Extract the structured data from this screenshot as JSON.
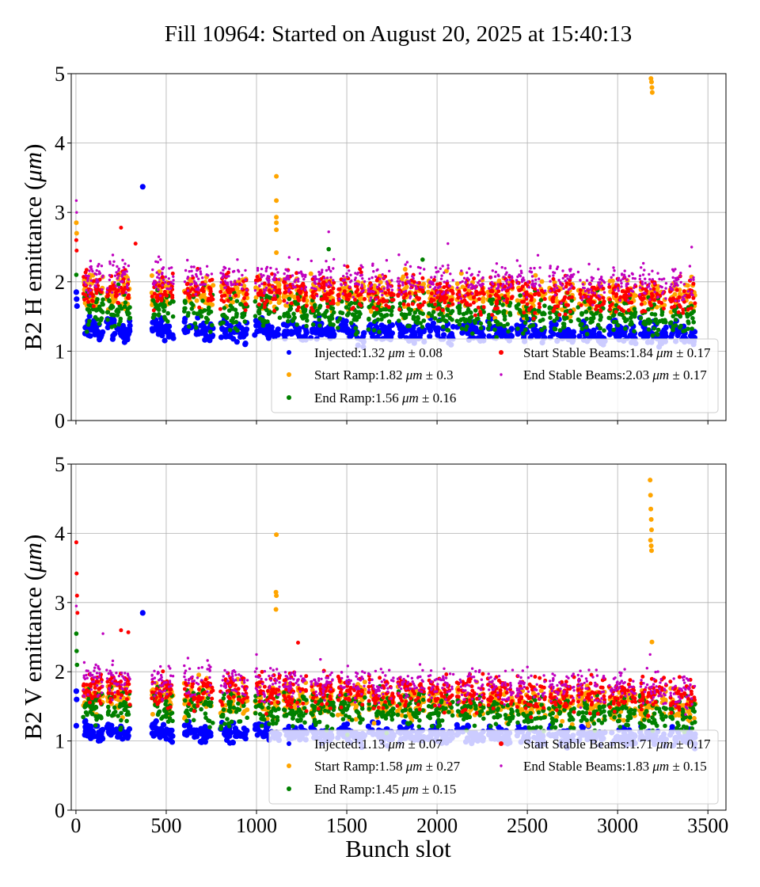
{
  "chart_data": {
    "type": "scatter",
    "title": "Fill 10964: Started on August 20, 2025 at 15:40:13",
    "xlabel": "Bunch slot",
    "xlim": [
      -26,
      3600
    ],
    "xticks": [
      "0",
      "500",
      "1000",
      "1500",
      "2000",
      "2500",
      "3000",
      "3500"
    ],
    "xtick_values": [
      0,
      500,
      1000,
      1500,
      2000,
      2500,
      3000,
      3500
    ],
    "grid": true,
    "legend_placement": "lower-right",
    "trains": [
      [
        40,
        150
      ],
      [
        170,
        300
      ],
      [
        420,
        540
      ],
      [
        600,
        760
      ],
      [
        800,
        950
      ],
      [
        990,
        1130
      ],
      [
        1150,
        1280
      ],
      [
        1300,
        1430
      ],
      [
        1450,
        1600
      ],
      [
        1620,
        1760
      ],
      [
        1780,
        1930
      ],
      [
        1950,
        2090
      ],
      [
        2110,
        2260
      ],
      [
        2280,
        2420
      ],
      [
        2440,
        2600
      ],
      [
        2620,
        2760
      ],
      [
        2780,
        2930
      ],
      [
        2950,
        3100
      ],
      [
        3120,
        3270
      ],
      [
        3290,
        3430
      ]
    ],
    "panels": [
      {
        "ylabel_prefix": "B2 H emittance (",
        "ylabel_unit": "μm",
        "ylabel_suffix": ")",
        "ylim": [
          0,
          5
        ],
        "yticks": [
          "0",
          "1",
          "2",
          "3",
          "4",
          "5"
        ],
        "series": [
          {
            "name": "Injected",
            "label": "Injected:1.32 ",
            "unit": "μm",
            "pm": " ± 0.08",
            "mean": 1.32,
            "std": 0.08,
            "color": "#0000ff",
            "outliers": [
              [
                370,
                3.37
              ],
              [
                2,
                1.85
              ],
              [
                4,
                1.75
              ],
              [
                6,
                1.65
              ]
            ]
          },
          {
            "name": "Start Ramp",
            "label": "Start Ramp:1.82 ",
            "unit": "μm",
            "pm": " ± 0.3",
            "mean": 1.82,
            "std": 0.3,
            "color": "#ffa500",
            "outliers": [
              [
                1110,
                3.52
              ],
              [
                1110,
                3.17
              ],
              [
                1110,
                2.93
              ],
              [
                1110,
                2.85
              ],
              [
                1110,
                2.75
              ],
              [
                1110,
                2.42
              ],
              [
                3185,
                4.93
              ],
              [
                3188,
                4.88
              ],
              [
                3190,
                4.8
              ],
              [
                3192,
                4.73
              ],
              [
                2,
                2.85
              ],
              [
                4,
                2.7
              ]
            ]
          },
          {
            "name": "End Ramp",
            "label": "End Ramp:1.56 ",
            "unit": "μm",
            "pm": " ± 0.16",
            "mean": 1.56,
            "std": 0.16,
            "color": "#008000",
            "outliers": [
              [
                1400,
                2.47
              ],
              [
                1920,
                2.32
              ],
              [
                2,
                2.1
              ]
            ]
          },
          {
            "name": "Start Stable Beams",
            "label": "Start Stable Beams:1.84 ",
            "unit": "μm",
            "pm": " ± 0.17",
            "mean": 1.84,
            "std": 0.17,
            "color": "#ff0000",
            "outliers": [
              [
                250,
                2.78
              ],
              [
                330,
                2.55
              ],
              [
                2,
                2.6
              ],
              [
                4,
                2.45
              ]
            ]
          },
          {
            "name": "End Stable Beams",
            "label": "End Stable Beams:2.03 ",
            "unit": "μm",
            "pm": " ± 0.17",
            "mean": 2.03,
            "std": 0.17,
            "color": "#bf00bf",
            "outliers": [
              [
                2,
                3.17
              ],
              [
                4,
                3.0
              ],
              [
                1400,
                2.72
              ],
              [
                2060,
                2.55
              ],
              [
                3410,
                2.5
              ]
            ]
          }
        ]
      },
      {
        "ylabel_prefix": "B2 V emittance (",
        "ylabel_unit": "μm",
        "ylabel_suffix": ")",
        "ylim": [
          0,
          5
        ],
        "yticks": [
          "0",
          "1",
          "2",
          "3",
          "4",
          "5"
        ],
        "series": [
          {
            "name": "Injected",
            "label": "Injected:1.13 ",
            "unit": "μm",
            "pm": " ± 0.07",
            "mean": 1.13,
            "std": 0.07,
            "color": "#0000ff",
            "outliers": [
              [
                370,
                2.85
              ],
              [
                2,
                1.72
              ],
              [
                4,
                1.6
              ],
              [
                2,
                1.22
              ]
            ]
          },
          {
            "name": "Start Ramp",
            "label": "Start Ramp:1.58 ",
            "unit": "μm",
            "pm": " ± 0.27",
            "mean": 1.58,
            "std": 0.27,
            "color": "#ffa500",
            "outliers": [
              [
                1110,
                3.98
              ],
              [
                1108,
                3.15
              ],
              [
                1110,
                3.1
              ],
              [
                1108,
                2.9
              ],
              [
                3180,
                4.77
              ],
              [
                3182,
                4.55
              ],
              [
                3184,
                4.35
              ],
              [
                3186,
                4.2
              ],
              [
                3188,
                4.05
              ],
              [
                3182,
                3.9
              ],
              [
                3186,
                3.82
              ],
              [
                3188,
                3.75
              ],
              [
                3190,
                2.43
              ]
            ]
          },
          {
            "name": "End Ramp",
            "label": "End Ramp:1.45 ",
            "unit": "μm",
            "pm": " ± 0.15",
            "mean": 1.45,
            "std": 0.15,
            "color": "#008000",
            "outliers": [
              [
                2,
                2.55
              ],
              [
                4,
                2.3
              ],
              [
                6,
                2.1
              ]
            ]
          },
          {
            "name": "Start Stable Beams",
            "label": "Start Stable Beams:1.71 ",
            "unit": "μm",
            "pm": " ± 0.17",
            "mean": 1.71,
            "std": 0.17,
            "color": "#ff0000",
            "outliers": [
              [
                2,
                3.87
              ],
              [
                4,
                3.42
              ],
              [
                6,
                3.1
              ],
              [
                8,
                2.85
              ],
              [
                250,
                2.6
              ],
              [
                290,
                2.57
              ],
              [
                1230,
                2.42
              ]
            ]
          },
          {
            "name": "End Stable Beams",
            "label": "End Stable Beams:1.83 ",
            "unit": "μm",
            "pm": " ± 0.15",
            "mean": 1.83,
            "std": 0.15,
            "color": "#bf00bf",
            "outliers": [
              [
                2,
                2.95
              ],
              [
                150,
                2.55
              ],
              [
                1000,
                2.25
              ],
              [
                3180,
                2.25
              ]
            ]
          }
        ]
      }
    ]
  }
}
